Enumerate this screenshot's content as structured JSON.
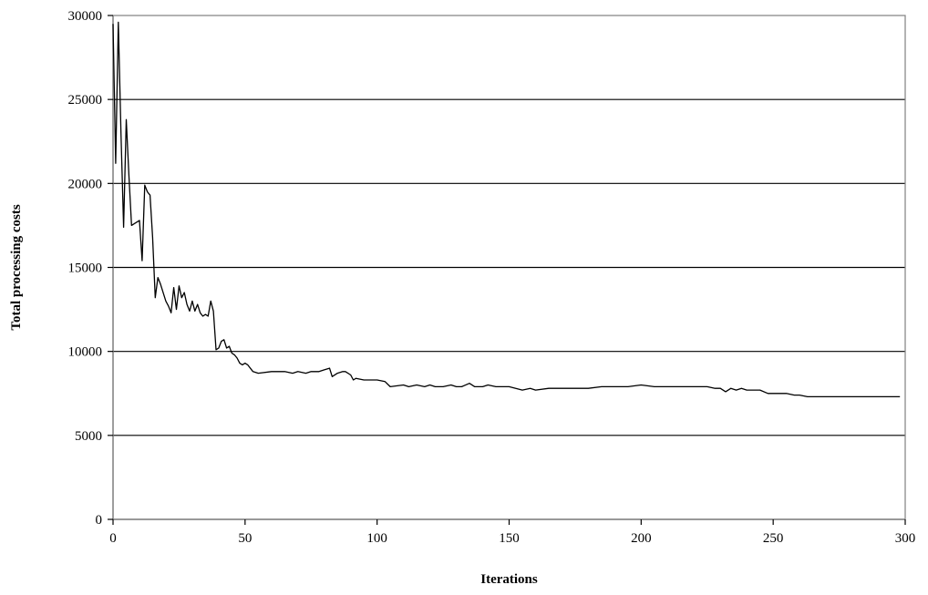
{
  "chart_data": {
    "type": "line",
    "title": "",
    "xlabel": "Iterations",
    "ylabel": "Total processing costs",
    "xlim": [
      0,
      300
    ],
    "ylim": [
      0,
      30000
    ],
    "x_ticks": [
      "0",
      "50",
      "100",
      "150",
      "200",
      "250",
      "300"
    ],
    "y_ticks": [
      "0",
      "5000",
      "10000",
      "15000",
      "20000",
      "25000",
      "30000"
    ],
    "grid": "horizontal",
    "legend": "none",
    "colors": {
      "line": "#000000",
      "grid": "#000000",
      "frame": "#808080"
    },
    "series": [
      {
        "x": [
          0,
          1,
          2,
          3,
          4,
          5,
          6,
          7,
          8,
          10,
          11,
          12,
          13,
          14,
          15,
          16,
          17,
          18,
          20,
          21,
          22,
          23,
          24,
          25,
          26,
          27,
          28,
          29,
          30,
          31,
          32,
          33,
          34,
          35,
          36,
          37,
          38,
          39,
          40,
          41,
          42,
          43,
          44,
          45,
          46,
          47,
          48,
          49,
          50,
          51,
          53,
          55,
          60,
          65,
          68,
          70,
          73,
          75,
          78,
          80,
          82,
          83,
          85,
          87,
          88,
          90,
          91,
          92,
          95,
          100,
          103,
          105,
          110,
          112,
          115,
          118,
          120,
          122,
          125,
          128,
          130,
          132,
          135,
          137,
          140,
          142,
          145,
          148,
          150,
          155,
          158,
          160,
          165,
          170,
          175,
          180,
          185,
          190,
          195,
          200,
          205,
          210,
          215,
          220,
          225,
          228,
          230,
          232,
          234,
          236,
          238,
          240,
          245,
          248,
          250,
          255,
          258,
          260,
          263,
          265,
          270,
          280,
          290,
          292,
          295,
          298
        ],
        "values": [
          29500,
          21200,
          29600,
          23000,
          17400,
          23800,
          20500,
          17500,
          17600,
          17800,
          15400,
          19900,
          19500,
          19300,
          16800,
          13200,
          14400,
          14000,
          13000,
          12700,
          12300,
          13800,
          12500,
          13900,
          13200,
          13500,
          12800,
          12400,
          13000,
          12400,
          12800,
          12300,
          12100,
          12200,
          12100,
          13000,
          12400,
          10100,
          10200,
          10600,
          10700,
          10200,
          10300,
          9900,
          9800,
          9600,
          9300,
          9200,
          9300,
          9200,
          8800,
          8700,
          8800,
          8800,
          8700,
          8800,
          8700,
          8800,
          8800,
          8900,
          9000,
          8500,
          8700,
          8800,
          8800,
          8600,
          8300,
          8400,
          8300,
          8300,
          8200,
          7900,
          8000,
          7900,
          8000,
          7900,
          8000,
          7900,
          7900,
          8000,
          7900,
          7900,
          8100,
          7900,
          7900,
          8000,
          7900,
          7900,
          7900,
          7700,
          7800,
          7700,
          7800,
          7800,
          7800,
          7800,
          7900,
          7900,
          7900,
          8000,
          7900,
          7900,
          7900,
          7900,
          7900,
          7800,
          7800,
          7600,
          7800,
          7700,
          7800,
          7700,
          7700,
          7500,
          7500,
          7500,
          7400,
          7400,
          7300,
          7300,
          7300,
          7300,
          7300,
          7300,
          7300,
          7300
        ]
      }
    ]
  }
}
